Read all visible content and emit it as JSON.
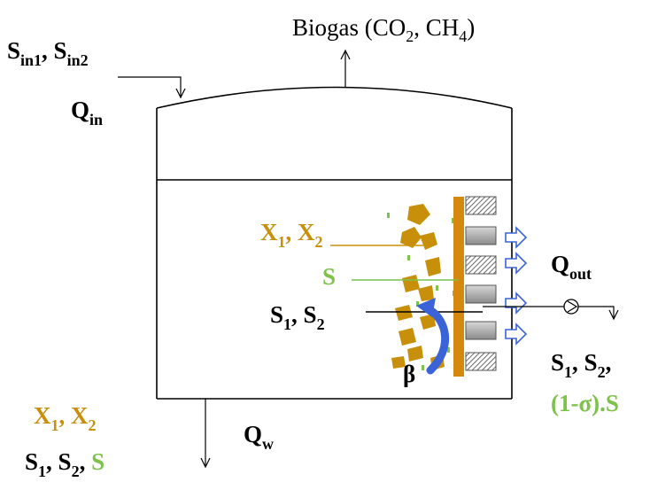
{
  "labels": {
    "biogas": {
      "text": "Biogas (CO",
      "sub1": "2",
      "mid": ", CH",
      "sub2": "4",
      "end": ")"
    },
    "inflow_substrates": {
      "s1": "S",
      "s1_sub": "in1",
      "sep": ", ",
      "s2": "S",
      "s2_sub": "in2"
    },
    "inflow_rate": {
      "q": "Q",
      "sub": "in"
    },
    "biomass_membrane": {
      "x1": "X",
      "x1_sub": "1",
      "sep": ", ",
      "x2": "X",
      "x2_sub": "2"
    },
    "membrane_s": "S",
    "substrates_membrane": {
      "s1": "S",
      "s1_sub": "1",
      "sep": ", ",
      "s2": "S",
      "s2_sub": "2"
    },
    "beta": "β",
    "outflow_rate": {
      "q": "Q",
      "sub": "out"
    },
    "outflow_substrates": {
      "s1": "S",
      "s1_sub": "1",
      "sep": ", ",
      "s2": "S",
      "s2_sub": "2",
      "end": ","
    },
    "outflow_sigma": "(1-σ).S",
    "waste_biomass": {
      "x1": "X",
      "x1_sub": "1",
      "sep": ", ",
      "x2": "X",
      "x2_sub": "2"
    },
    "waste_rate": {
      "q": "Q",
      "sub": "w"
    },
    "waste_substrates": {
      "s1": "S",
      "s1_sub": "1",
      "sep1": ", ",
      "s2": "S",
      "s2_sub": "2",
      "sep2": ", ",
      "s": "S"
    }
  },
  "colors": {
    "biomass": "#c8900a",
    "soluble": "#7dc24a",
    "arrow_blue": "#3a63d8",
    "membrane": "#d4890e",
    "ink": "#000000"
  }
}
